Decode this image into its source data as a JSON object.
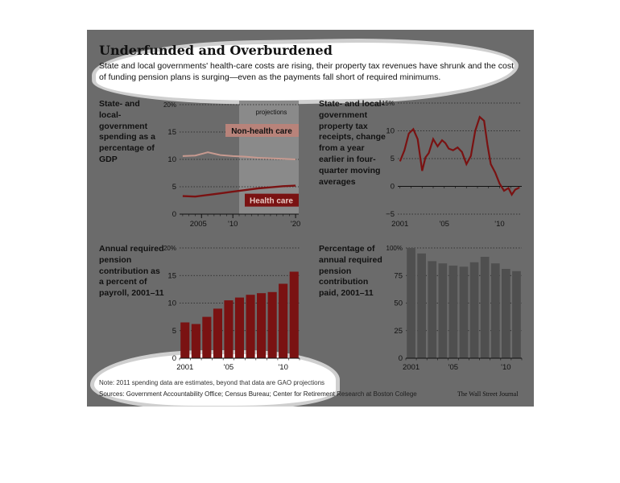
{
  "title": "Underfunded and Overburdened",
  "subtitle": "State and local governments' health-care costs are rising, their property tax revenues have shrunk and the cost of funding pension plans is surging—even as the payments fall short of required minimums.",
  "note": "Note: 2011 spending data are estimates, beyond that data are GAO projections",
  "sources": "Sources: Government Accountability Office; Census Bureau; Center for Retirement Research at Boston College",
  "credit": "The Wall Street Journal",
  "colors": {
    "accent": "#7a1212",
    "panel": "#6b6b6b",
    "projection_shade": "#8a8a8a",
    "bars_gray": "#4f4f4f"
  },
  "chart_data": [
    {
      "id": "spending",
      "type": "line",
      "title": "State- and local-government spending as a percentage of GDP",
      "annotation": "projections",
      "x": [
        2002,
        2004,
        2006,
        2008,
        2010,
        2012,
        2014,
        2016,
        2018,
        2020
      ],
      "series": [
        {
          "name": "Non-health care",
          "values": [
            10.6,
            10.7,
            11.3,
            10.8,
            10.6,
            10.5,
            10.3,
            10.2,
            10.1,
            10.0
          ]
        },
        {
          "name": "Health care",
          "values": [
            3.3,
            3.2,
            3.5,
            3.8,
            4.1,
            4.4,
            4.7,
            4.9,
            5.1,
            5.2
          ]
        }
      ],
      "xticks": [
        "2005",
        "'10",
        "'20"
      ],
      "yticks": [
        "0",
        "5",
        "10",
        "15",
        "20%"
      ],
      "ylim": [
        0,
        20
      ],
      "projection_start": 2011
    },
    {
      "id": "property_tax",
      "type": "line",
      "title": "State- and local-government property tax receipts, change from a year earlier in four-quarter moving averages",
      "x": [
        2001.0,
        2001.4,
        2001.8,
        2002.2,
        2002.6,
        2003.0,
        2003.3,
        2003.6,
        2004.0,
        2004.4,
        2004.8,
        2005.1,
        2005.4,
        2005.8,
        2006.2,
        2006.6,
        2007.0,
        2007.4,
        2007.8,
        2008.2,
        2008.6,
        2008.9,
        2009.2,
        2009.6,
        2010.0,
        2010.4,
        2010.8,
        2011.1,
        2011.4,
        2011.8
      ],
      "series": [
        {
          "name": "",
          "values": [
            4.5,
            6.5,
            9.5,
            10.3,
            8.5,
            2.8,
            5.2,
            6.0,
            8.5,
            7.2,
            8.3,
            7.8,
            6.8,
            6.5,
            7.0,
            6.2,
            4.0,
            5.5,
            10.0,
            12.5,
            11.8,
            7.5,
            4.0,
            2.5,
            0.5,
            -0.8,
            -0.3,
            -1.5,
            -0.6,
            -0.2
          ]
        }
      ],
      "xticks": [
        "2001",
        "'05",
        "'10"
      ],
      "yticks": [
        "−5",
        "0",
        "5",
        "10",
        "15%"
      ],
      "ylim": [
        -5,
        15
      ]
    },
    {
      "id": "pension_required",
      "type": "bar",
      "title": "Annual required pension contribution as a percent of payroll, 2001–11",
      "categories": [
        "2001",
        "2002",
        "2003",
        "2004",
        "2005",
        "2006",
        "2007",
        "2008",
        "2009",
        "2010",
        "2011"
      ],
      "values": [
        6.5,
        6.2,
        7.5,
        9.0,
        10.5,
        11.0,
        11.5,
        11.8,
        12.0,
        13.5,
        15.7
      ],
      "xticks": [
        "2001",
        "'05",
        "'10"
      ],
      "yticks": [
        "0",
        "5",
        "10",
        "15",
        "20%"
      ],
      "ylim": [
        0,
        20
      ]
    },
    {
      "id": "pension_paid",
      "type": "bar",
      "title": "Percentage of annual required pension contribution paid, 2001–11",
      "categories": [
        "2001",
        "2002",
        "2003",
        "2004",
        "2005",
        "2006",
        "2007",
        "2008",
        "2009",
        "2010",
        "2011"
      ],
      "values": [
        100,
        95,
        88,
        86,
        84,
        83,
        87,
        92,
        86,
        81,
        79
      ],
      "xticks": [
        "2001",
        "'05",
        "'10"
      ],
      "yticks": [
        "0",
        "25",
        "50",
        "75",
        "100%"
      ],
      "ylim": [
        0,
        100
      ]
    }
  ]
}
